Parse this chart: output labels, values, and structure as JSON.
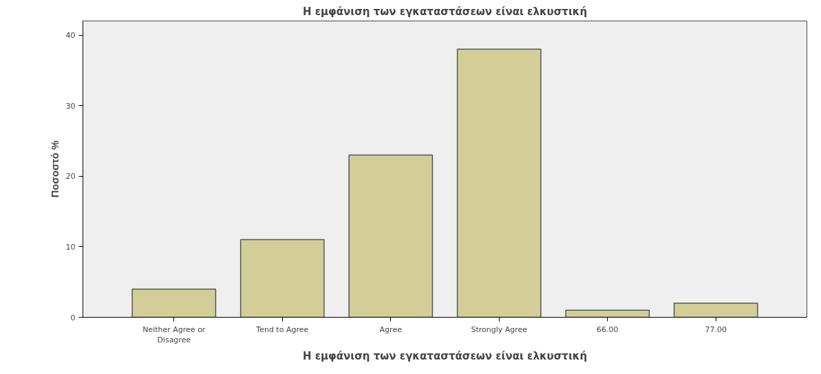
{
  "chart_data": {
    "type": "bar",
    "title": "Η εμφάνιση των εγκαταστάσεων είναι ελκυστική",
    "xlabel": "Η εμφάνιση των εγκαταστάσεων είναι ελκυστική",
    "ylabel": "Ποσοστό %",
    "categories": [
      "Neither Agree or\nDisagree",
      "Tend to Agree",
      "Agree",
      "Strongly Agree",
      "66.00",
      "77.00"
    ],
    "values": [
      4,
      11,
      23,
      38,
      1,
      2
    ],
    "color": "#d3ce97",
    "ylim": [
      0,
      42
    ],
    "yticks": [
      0,
      10,
      20,
      30,
      40
    ],
    "grid": false
  }
}
